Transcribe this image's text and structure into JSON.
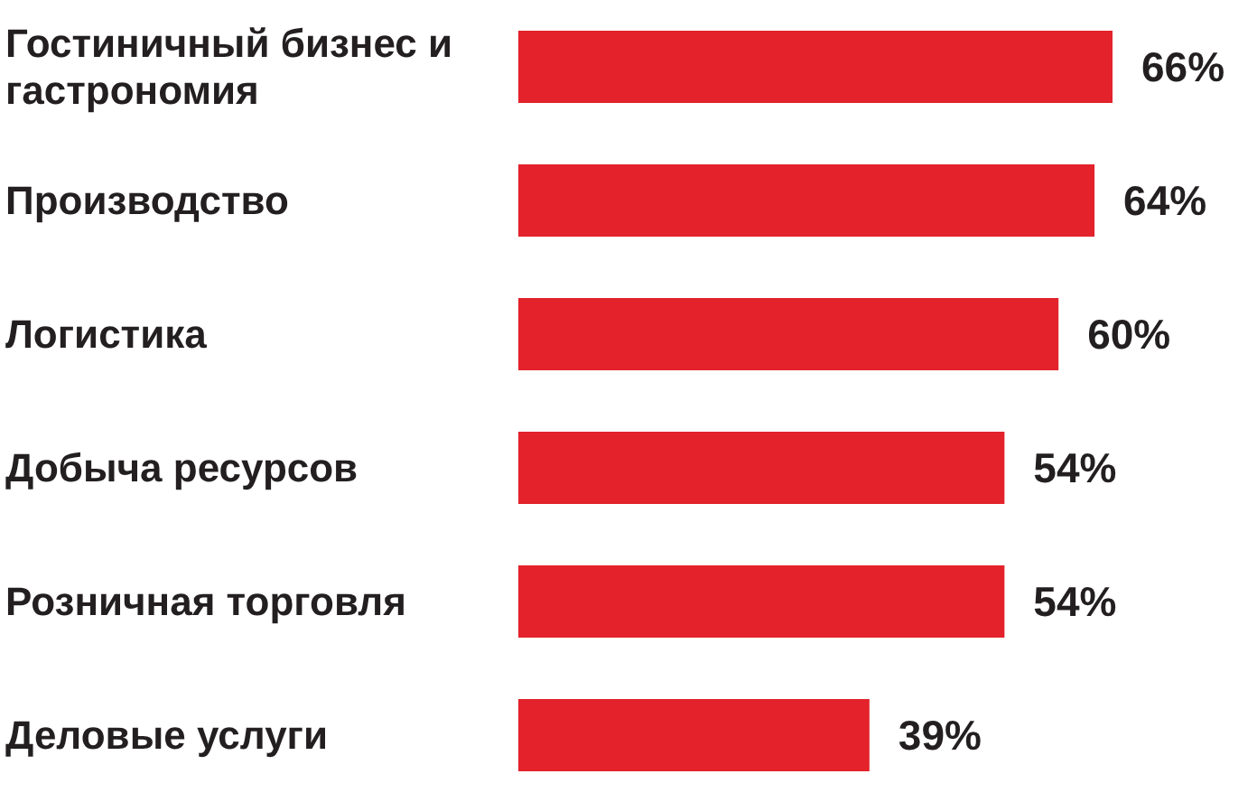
{
  "chart_data": {
    "type": "bar",
    "orientation": "horizontal",
    "categories": [
      "Гостиничный бизнес и гастрономия",
      "Производство",
      "Логистика",
      "Добыча ресурсов",
      "Розничная торговля",
      "Деловые услуги"
    ],
    "values": [
      66,
      64,
      60,
      54,
      54,
      39
    ],
    "value_labels": [
      "66%",
      "64%",
      "60%",
      "54%",
      "54%",
      "39%"
    ],
    "color": "#e3222b"
  }
}
